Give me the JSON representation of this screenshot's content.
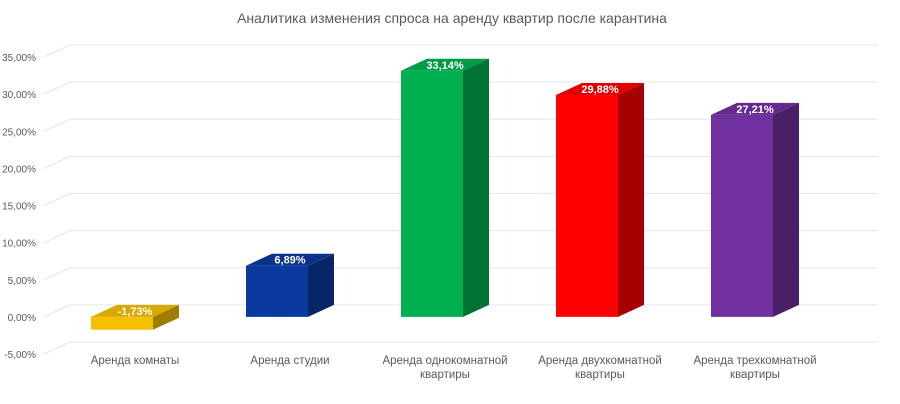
{
  "chart_data": {
    "type": "bar",
    "title": "Аналитика изменения спроса на аренду квартир после карантина",
    "categories": [
      [
        "Аренда комнаты"
      ],
      [
        "Аренда студии"
      ],
      [
        "Аренда однокомнатной",
        "квартиры"
      ],
      [
        "Аренда двухкомнатной",
        "квартиры"
      ],
      [
        "Аренда трехкомнатной",
        "квартиры"
      ]
    ],
    "values": [
      -1.73,
      6.89,
      33.14,
      29.88,
      27.21
    ],
    "data_labels": [
      "-1,73%",
      "6,89%",
      "33,14%",
      "29,88%",
      "27,21%"
    ],
    "colors": [
      "#F5C000",
      "#0A3A9E",
      "#00B050",
      "#FF0000",
      "#7030A0"
    ],
    "ylim": [
      -5,
      35
    ],
    "yticks": [
      {
        "value": 35,
        "label": "35,00%"
      },
      {
        "value": 30,
        "label": "30,00%"
      },
      {
        "value": 25,
        "label": "25,00%"
      },
      {
        "value": 20,
        "label": "20,00%"
      },
      {
        "value": 15,
        "label": "15,00%"
      },
      {
        "value": 10,
        "label": "10,00%"
      },
      {
        "value": 5,
        "label": "5,00%"
      },
      {
        "value": 0,
        "label": "0,00%"
      },
      {
        "value": -5,
        "label": "-5,00%"
      }
    ],
    "grid": true,
    "style": "3d-column"
  }
}
